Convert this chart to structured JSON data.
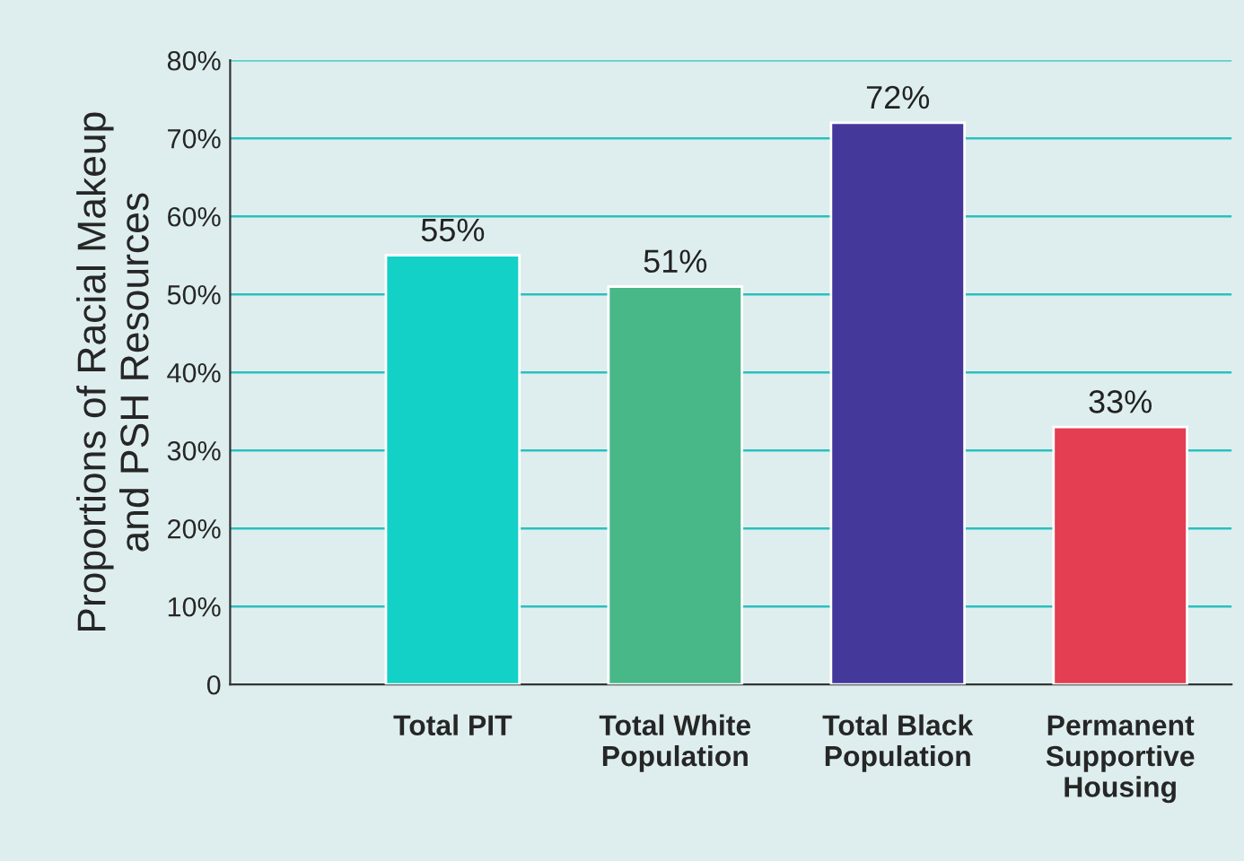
{
  "chart_data": {
    "type": "bar",
    "ylabel": "Proportions of Racial Makeup\nand PSH Resources",
    "categories": [
      "Total PIT",
      "Total White\nPopulation",
      "Total Black\nPopulation",
      "Permanent\nSupportive\nHousing"
    ],
    "values": [
      55,
      51,
      72,
      33
    ],
    "colors": [
      "#13d1c7",
      "#48b888",
      "#45389b",
      "#e33e51"
    ],
    "value_labels": [
      "55%",
      "51%",
      "72%",
      "33%"
    ],
    "ylim": [
      0,
      80
    ],
    "yticks": [
      {
        "value": 0,
        "label": "0"
      },
      {
        "value": 10,
        "label": "10%"
      },
      {
        "value": 20,
        "label": "20%"
      },
      {
        "value": 30,
        "label": "30%"
      },
      {
        "value": 40,
        "label": "40%"
      },
      {
        "value": 50,
        "label": "50%"
      },
      {
        "value": 60,
        "label": "60%"
      },
      {
        "value": 70,
        "label": "70%"
      },
      {
        "value": 80,
        "label": "80%"
      }
    ],
    "grid": "y",
    "legend": false
  }
}
